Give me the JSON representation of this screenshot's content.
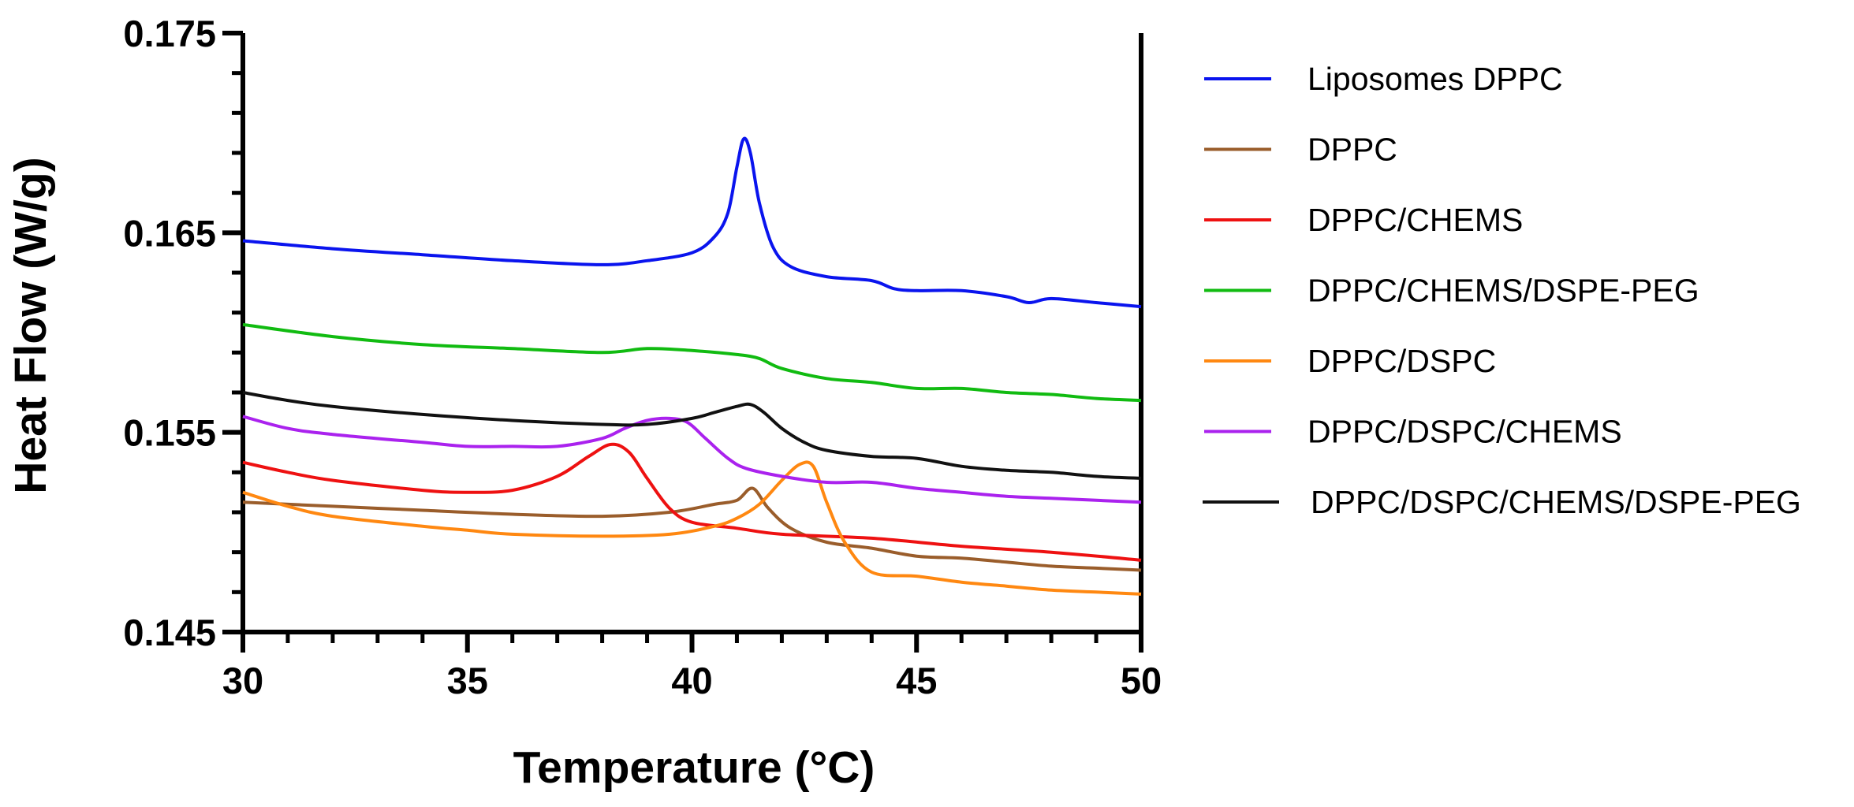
{
  "chart_data": {
    "type": "line",
    "xlabel": "Temperature (°C)",
    "ylabel": "Heat Flow (W/g)",
    "xlim": [
      30,
      50
    ],
    "ylim": [
      0.145,
      0.175
    ],
    "xticks": [
      30,
      35,
      40,
      45,
      50
    ],
    "yticks": [
      0.145,
      0.155,
      0.165,
      0.175
    ],
    "xtick_labels": [
      "30",
      "35",
      "40",
      "45",
      "50"
    ],
    "ytick_labels": [
      "0.145",
      "0.155",
      "0.165",
      "0.175"
    ],
    "legend_position": "right",
    "series": [
      {
        "name": "Liposomes DPPC",
        "color": "#0a14ee",
        "x": [
          30,
          32,
          34,
          36,
          38,
          39,
          40,
          40.5,
          40.8,
          41.0,
          41.15,
          41.3,
          41.5,
          41.8,
          42.2,
          43,
          44,
          44.5,
          45,
          46,
          47,
          47.5,
          48,
          49,
          50
        ],
        "y": [
          0.1646,
          0.1642,
          0.1639,
          0.1636,
          0.1634,
          0.1636,
          0.164,
          0.1648,
          0.166,
          0.1683,
          0.1697,
          0.169,
          0.1665,
          0.1643,
          0.1633,
          0.1628,
          0.1626,
          0.1622,
          0.1621,
          0.1621,
          0.1618,
          0.1615,
          0.1617,
          0.1615,
          0.1613
        ]
      },
      {
        "name": "DPPC",
        "color": "#9a5d2b",
        "x": [
          30,
          32,
          34,
          36,
          38,
          39.5,
          40.5,
          41.0,
          41.35,
          41.7,
          42.2,
          43,
          44,
          45,
          46,
          47,
          48,
          49,
          50
        ],
        "y": [
          0.1515,
          0.1513,
          0.1511,
          0.1509,
          0.1508,
          0.151,
          0.1514,
          0.1516,
          0.1522,
          0.1512,
          0.1502,
          0.1495,
          0.1492,
          0.1488,
          0.1487,
          0.1485,
          0.1483,
          0.1482,
          0.1481
        ]
      },
      {
        "name": "DPPC/CHEMS",
        "color": "#ee1111",
        "x": [
          30,
          31,
          32,
          34,
          35,
          36,
          37,
          37.7,
          38.2,
          38.6,
          39,
          39.5,
          40,
          41,
          42,
          44,
          46,
          48,
          50
        ],
        "y": [
          0.1535,
          0.153,
          0.1526,
          0.1521,
          0.152,
          0.1521,
          0.1528,
          0.1538,
          0.1544,
          0.154,
          0.1527,
          0.1512,
          0.1505,
          0.1502,
          0.1499,
          0.1497,
          0.1493,
          0.149,
          0.1486
        ]
      },
      {
        "name": "DPPC/CHEMS/DSPE-PEG",
        "color": "#11bb11",
        "x": [
          30,
          32,
          34,
          36,
          38,
          39,
          40,
          41,
          41.5,
          42,
          43,
          44,
          45,
          46,
          47,
          48,
          49,
          50
        ],
        "y": [
          0.1604,
          0.1598,
          0.1594,
          0.1592,
          0.159,
          0.1592,
          0.1591,
          0.1589,
          0.1587,
          0.1582,
          0.1577,
          0.1575,
          0.1572,
          0.1572,
          0.157,
          0.1569,
          0.1567,
          0.1566
        ]
      },
      {
        "name": "DPPC/DSPC",
        "color": "#ff8811",
        "x": [
          30,
          31,
          32,
          34,
          35,
          36,
          38,
          39.5,
          40.5,
          41,
          41.5,
          42,
          42.4,
          42.7,
          43,
          43.4,
          44,
          45,
          46,
          47,
          48,
          49,
          50
        ],
        "y": [
          0.152,
          0.1513,
          0.1508,
          0.1503,
          0.1501,
          0.1499,
          0.1498,
          0.1499,
          0.1503,
          0.1507,
          0.1514,
          0.1526,
          0.1534,
          0.1533,
          0.1515,
          0.1495,
          0.148,
          0.1478,
          0.1475,
          0.1473,
          0.1471,
          0.147,
          0.1469
        ]
      },
      {
        "name": "DPPC/DSPC/CHEMS",
        "color": "#aa22ee",
        "x": [
          30,
          31,
          32,
          34,
          35,
          36,
          37,
          38,
          38.5,
          39,
          39.5,
          39.9,
          40.3,
          40.8,
          41.2,
          42,
          43,
          44,
          45,
          46,
          47,
          48,
          49,
          50
        ],
        "y": [
          0.1558,
          0.1552,
          0.1549,
          0.1545,
          0.1543,
          0.1543,
          0.1543,
          0.1547,
          0.1552,
          0.1556,
          0.1557,
          0.1555,
          0.1547,
          0.1537,
          0.1532,
          0.1528,
          0.1525,
          0.1525,
          0.1522,
          0.152,
          0.1518,
          0.1517,
          0.1516,
          0.1515
        ]
      },
      {
        "name": "DPPC/DSPC/CHEMS/DSPE-PEG",
        "color": "#111111",
        "x": [
          30,
          31,
          32,
          34,
          36,
          38,
          39,
          40,
          40.5,
          41,
          41.3,
          41.6,
          42,
          42.5,
          43,
          44,
          45,
          46,
          47,
          48,
          49,
          50
        ],
        "y": [
          0.157,
          0.1566,
          0.1563,
          0.1559,
          0.1556,
          0.1554,
          0.1554,
          0.1557,
          0.156,
          0.1563,
          0.1564,
          0.156,
          0.1552,
          0.1545,
          0.1541,
          0.1538,
          0.1537,
          0.1533,
          0.1531,
          0.153,
          0.1528,
          0.1527
        ]
      }
    ]
  }
}
